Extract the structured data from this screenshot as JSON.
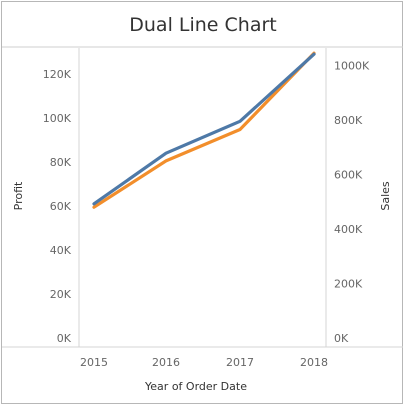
{
  "chart_data": {
    "type": "line",
    "title": "Dual Line Chart",
    "xlabel": "Year of Order Date",
    "x": [
      "2015",
      "2016",
      "2017",
      "2018"
    ],
    "y_left": {
      "label": "Profit",
      "ticks": [
        "0K",
        "20K",
        "40K",
        "60K",
        "80K",
        "100K",
        "120K"
      ],
      "ylim": [
        0,
        137000
      ]
    },
    "y_right": {
      "label": "Sales",
      "ticks": [
        "0K",
        "200K",
        "400K",
        "600K",
        "800K",
        "1000K"
      ],
      "ylim": [
        0,
        1110000
      ]
    },
    "series": [
      {
        "axis": "left",
        "color": "#4e79a7",
        "values": [
          61000,
          84000,
          98500,
          129000
        ]
      },
      {
        "axis": "right",
        "color": "#f28e2b",
        "values": [
          480000,
          650000,
          765000,
          1045000
        ]
      }
    ],
    "grid": false,
    "legend": "none"
  }
}
